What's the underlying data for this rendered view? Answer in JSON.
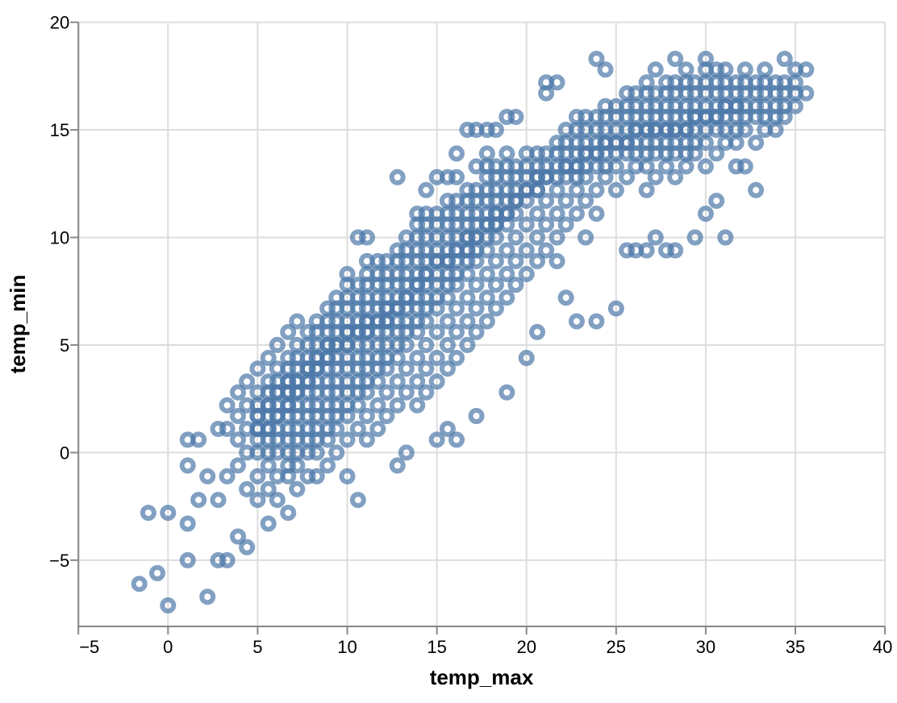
{
  "chart_data": {
    "type": "scatter",
    "title": "",
    "xlabel": "temp_max",
    "ylabel": "temp_min",
    "x_ticks": [
      -5,
      0,
      5,
      10,
      15,
      20,
      25,
      30,
      35,
      40
    ],
    "y_ticks": [
      -5,
      0,
      5,
      10,
      15,
      20
    ],
    "xlim": [
      -5,
      40
    ],
    "ylim": [
      -8.1,
      20
    ],
    "grid": true,
    "legend": false,
    "mark": {
      "shape": "open-circle",
      "color": "#4c78a8",
      "opacity": 0.7
    },
    "colors": {
      "point": "#4c78a8",
      "grid": "#dddddd",
      "axis": "#888888",
      "label": "#000000"
    },
    "points_by_column": [
      [
        -1.6,
        [
          -6.1
        ]
      ],
      [
        -1.1,
        [
          -2.8
        ]
      ],
      [
        -0.6,
        [
          -5.6
        ]
      ],
      [
        0.0,
        [
          -7.1,
          -2.8
        ]
      ],
      [
        1.1,
        [
          -5.0,
          -3.3,
          -0.6,
          0.6
        ]
      ],
      [
        1.7,
        [
          -2.2,
          0.6
        ]
      ],
      [
        2.2,
        [
          -6.7,
          -1.1
        ]
      ],
      [
        2.8,
        [
          -5.0,
          -2.2,
          1.1
        ]
      ],
      [
        3.3,
        [
          -5.0,
          -1.1,
          1.1,
          2.2
        ]
      ],
      [
        3.9,
        [
          -3.9,
          -0.6,
          0.6,
          1.7,
          2.8
        ]
      ],
      [
        4.4,
        [
          -4.4,
          -1.7,
          0.0,
          1.1,
          2.2,
          3.3
        ]
      ],
      [
        5.0,
        [
          -2.2,
          -1.1,
          0.0,
          0.6,
          1.1,
          1.1,
          1.7,
          1.7,
          2.2,
          2.8,
          3.9
        ]
      ],
      [
        5.6,
        [
          -3.3,
          -1.7,
          -0.6,
          0.0,
          0.6,
          1.1,
          1.1,
          1.7,
          2.2,
          2.2,
          2.8,
          3.3,
          4.4
        ]
      ],
      [
        6.1,
        [
          -2.2,
          -1.1,
          0.0,
          0.6,
          1.1,
          1.7,
          1.7,
          2.2,
          2.8,
          2.8,
          3.3,
          3.9,
          5.0
        ]
      ],
      [
        6.7,
        [
          -2.8,
          -1.1,
          -0.6,
          0.0,
          0.6,
          1.1,
          1.7,
          2.2,
          2.2,
          2.8,
          2.8,
          3.3,
          3.3,
          3.9,
          4.4,
          5.6
        ]
      ],
      [
        7.2,
        [
          -1.7,
          -0.6,
          0.0,
          0.6,
          1.1,
          1.7,
          2.2,
          2.8,
          2.8,
          3.3,
          3.3,
          3.9,
          4.4,
          5.0,
          6.1
        ]
      ],
      [
        7.8,
        [
          -1.1,
          0.0,
          0.6,
          1.1,
          1.7,
          2.2,
          2.8,
          3.3,
          3.3,
          3.9,
          3.9,
          4.4,
          5.0,
          5.6
        ]
      ],
      [
        8.3,
        [
          -1.1,
          0.0,
          0.6,
          1.1,
          1.7,
          2.2,
          2.8,
          3.3,
          3.9,
          3.9,
          4.4,
          4.4,
          5.0,
          5.6,
          6.1
        ]
      ],
      [
        8.9,
        [
          -0.6,
          0.6,
          1.1,
          1.7,
          2.2,
          2.8,
          3.3,
          3.9,
          4.4,
          4.4,
          5.0,
          5.0,
          5.6,
          6.1,
          6.7
        ]
      ],
      [
        9.4,
        [
          0.0,
          1.1,
          1.7,
          2.2,
          2.8,
          3.3,
          3.9,
          4.4,
          5.0,
          5.0,
          5.6,
          6.1,
          6.7,
          7.2
        ]
      ],
      [
        10.0,
        [
          -1.1,
          0.6,
          1.7,
          2.2,
          2.8,
          3.3,
          3.9,
          4.4,
          5.0,
          5.0,
          5.6,
          5.6,
          6.1,
          6.7,
          7.2,
          7.8,
          8.3
        ]
      ],
      [
        10.6,
        [
          -2.2,
          1.1,
          2.2,
          2.8,
          3.3,
          3.9,
          4.4,
          5.0,
          5.6,
          5.6,
          6.1,
          6.7,
          7.2,
          7.8,
          10.0
        ]
      ],
      [
        11.1,
        [
          0.6,
          1.7,
          2.8,
          3.3,
          3.9,
          4.4,
          5.0,
          5.6,
          5.6,
          6.1,
          6.1,
          6.7,
          7.2,
          7.8,
          8.3,
          8.9,
          10.0
        ]
      ],
      [
        11.7,
        [
          1.1,
          2.2,
          3.3,
          3.9,
          4.4,
          5.0,
          5.6,
          6.1,
          6.1,
          6.7,
          7.2,
          7.8,
          8.3,
          8.9
        ]
      ],
      [
        12.2,
        [
          1.7,
          2.8,
          3.9,
          4.4,
          5.0,
          5.6,
          6.1,
          6.1,
          6.7,
          6.7,
          7.2,
          7.8,
          8.3,
          8.9
        ]
      ],
      [
        12.8,
        [
          -0.6,
          2.2,
          3.3,
          4.4,
          5.0,
          5.6,
          6.1,
          6.7,
          6.7,
          7.2,
          7.8,
          8.3,
          8.9,
          9.4,
          12.8
        ]
      ],
      [
        13.3,
        [
          0.0,
          2.8,
          3.9,
          5.0,
          5.6,
          6.1,
          6.7,
          7.2,
          7.2,
          7.8,
          8.3,
          8.9,
          9.4,
          10.0
        ]
      ],
      [
        13.9,
        [
          2.2,
          3.3,
          4.4,
          5.6,
          6.1,
          6.7,
          7.2,
          7.8,
          7.8,
          8.3,
          8.9,
          9.4,
          10.0,
          10.6,
          11.1
        ]
      ],
      [
        14.4,
        [
          2.8,
          3.9,
          5.0,
          6.1,
          6.7,
          7.2,
          7.8,
          8.3,
          8.3,
          8.9,
          9.4,
          10.0,
          10.6,
          11.1,
          12.2
        ]
      ],
      [
        15.0,
        [
          0.6,
          3.3,
          4.4,
          5.6,
          6.7,
          7.2,
          7.8,
          8.3,
          8.9,
          8.9,
          9.4,
          10.0,
          10.6,
          11.1,
          12.8
        ]
      ],
      [
        15.6,
        [
          1.1,
          3.9,
          5.0,
          6.1,
          7.2,
          7.8,
          8.3,
          8.9,
          8.9,
          9.4,
          10.0,
          10.6,
          11.1,
          11.7,
          12.8
        ]
      ],
      [
        16.1,
        [
          0.6,
          4.4,
          5.6,
          6.7,
          7.8,
          8.3,
          8.9,
          9.4,
          9.4,
          10.0,
          10.6,
          11.1,
          11.7,
          12.8,
          13.9
        ]
      ],
      [
        16.7,
        [
          5.0,
          6.1,
          7.2,
          8.3,
          8.9,
          9.4,
          9.4,
          10.0,
          10.0,
          10.6,
          11.1,
          11.7,
          12.2,
          15.0
        ]
      ],
      [
        17.2,
        [
          1.7,
          5.6,
          6.7,
          7.8,
          8.9,
          9.4,
          10.0,
          10.0,
          10.6,
          11.1,
          11.7,
          12.2,
          13.3,
          15.0
        ]
      ],
      [
        17.8,
        [
          6.1,
          7.2,
          8.3,
          9.4,
          10.0,
          10.6,
          10.6,
          11.1,
          11.7,
          12.2,
          12.8,
          13.3,
          13.9,
          15.0
        ]
      ],
      [
        18.3,
        [
          6.7,
          7.8,
          8.9,
          10.0,
          10.6,
          10.6,
          11.1,
          11.1,
          11.7,
          12.2,
          12.8,
          13.3,
          15.0
        ]
      ],
      [
        18.9,
        [
          2.8,
          7.2,
          8.3,
          9.4,
          10.6,
          11.1,
          11.1,
          11.7,
          12.2,
          12.8,
          13.3,
          13.9,
          15.6
        ]
      ],
      [
        19.4,
        [
          7.8,
          8.9,
          10.0,
          11.1,
          11.7,
          11.7,
          12.2,
          12.8,
          13.3,
          15.6
        ]
      ],
      [
        20.0,
        [
          4.4,
          8.3,
          9.4,
          10.6,
          11.7,
          12.2,
          12.2,
          12.8,
          13.3,
          13.9
        ]
      ],
      [
        20.6,
        [
          5.6,
          8.9,
          10.0,
          11.1,
          12.2,
          12.2,
          12.8,
          12.8,
          13.3,
          13.9
        ]
      ],
      [
        21.1,
        [
          9.4,
          10.6,
          11.7,
          12.8,
          12.8,
          13.3,
          13.9,
          16.7,
          17.2
        ]
      ],
      [
        21.7,
        [
          8.9,
          10.0,
          11.1,
          12.2,
          12.8,
          13.3,
          13.9,
          14.4,
          17.2
        ]
      ],
      [
        22.2,
        [
          7.2,
          10.6,
          11.7,
          12.8,
          13.3,
          13.3,
          13.9,
          14.4,
          15.0
        ]
      ],
      [
        22.8,
        [
          6.1,
          11.1,
          12.2,
          12.8,
          13.3,
          13.3,
          13.9,
          14.4,
          15.0,
          15.6
        ]
      ],
      [
        23.3,
        [
          10.0,
          11.7,
          12.8,
          13.3,
          13.9,
          13.9,
          14.4,
          15.0,
          15.6
        ]
      ],
      [
        23.9,
        [
          6.1,
          11.1,
          12.2,
          13.3,
          13.9,
          13.9,
          14.4,
          15.0,
          15.6,
          18.3
        ]
      ],
      [
        24.4,
        [
          12.8,
          13.3,
          13.9,
          14.4,
          14.4,
          15.0,
          15.6,
          16.1,
          17.8
        ]
      ],
      [
        25.0,
        [
          6.7,
          12.2,
          13.3,
          13.9,
          14.4,
          14.4,
          15.0,
          15.6,
          16.1
        ]
      ],
      [
        25.6,
        [
          9.4,
          12.8,
          13.9,
          14.4,
          14.4,
          15.0,
          15.6,
          16.1,
          16.7
        ]
      ],
      [
        26.1,
        [
          9.4,
          13.3,
          13.9,
          14.4,
          15.0,
          15.0,
          15.6,
          16.1,
          16.7
        ]
      ],
      [
        26.7,
        [
          9.4,
          12.2,
          13.3,
          13.9,
          14.4,
          15.0,
          15.0,
          15.6,
          16.1,
          16.7,
          17.2
        ]
      ],
      [
        27.2,
        [
          10.0,
          12.8,
          13.9,
          14.4,
          15.0,
          15.0,
          15.6,
          16.1,
          16.7,
          17.8
        ]
      ],
      [
        27.8,
        [
          9.4,
          13.3,
          13.9,
          14.4,
          15.0,
          15.0,
          15.6,
          16.1,
          16.7,
          17.2
        ]
      ],
      [
        28.3,
        [
          9.4,
          12.8,
          13.9,
          14.4,
          15.0,
          15.0,
          15.6,
          16.1,
          16.7,
          17.2,
          18.3
        ]
      ],
      [
        28.9,
        [
          13.3,
          13.9,
          14.4,
          15.0,
          15.0,
          15.6,
          16.1,
          16.7,
          17.2,
          17.8
        ]
      ],
      [
        29.4,
        [
          10.0,
          13.9,
          14.4,
          15.0,
          15.6,
          15.6,
          16.1,
          16.7,
          17.2
        ]
      ],
      [
        30.0,
        [
          11.1,
          13.3,
          14.4,
          15.0,
          15.6,
          15.6,
          16.1,
          16.7,
          17.2,
          17.8,
          18.3
        ]
      ],
      [
        30.6,
        [
          11.7,
          13.9,
          15.0,
          15.6,
          15.6,
          16.1,
          16.7,
          17.2,
          17.8
        ]
      ],
      [
        31.1,
        [
          10.0,
          14.4,
          15.0,
          15.6,
          16.1,
          16.1,
          16.7,
          17.2,
          17.8
        ]
      ],
      [
        31.7,
        [
          13.3,
          14.4,
          15.0,
          15.6,
          16.1,
          16.1,
          16.7,
          17.2
        ]
      ],
      [
        32.2,
        [
          13.3,
          15.0,
          15.6,
          16.1,
          16.7,
          17.2,
          17.8
        ]
      ],
      [
        32.8,
        [
          12.2,
          14.4,
          15.6,
          16.1,
          16.7,
          17.2
        ]
      ],
      [
        33.3,
        [
          15.0,
          15.6,
          16.1,
          16.7,
          17.2,
          17.8
        ]
      ],
      [
        33.9,
        [
          15.0,
          15.6,
          16.1,
          16.7,
          17.2
        ]
      ],
      [
        34.4,
        [
          15.6,
          16.1,
          16.7,
          17.2,
          18.3
        ]
      ],
      [
        35.0,
        [
          16.1,
          16.7,
          17.2,
          17.8
        ]
      ],
      [
        35.6,
        [
          16.7,
          17.8
        ]
      ]
    ]
  }
}
